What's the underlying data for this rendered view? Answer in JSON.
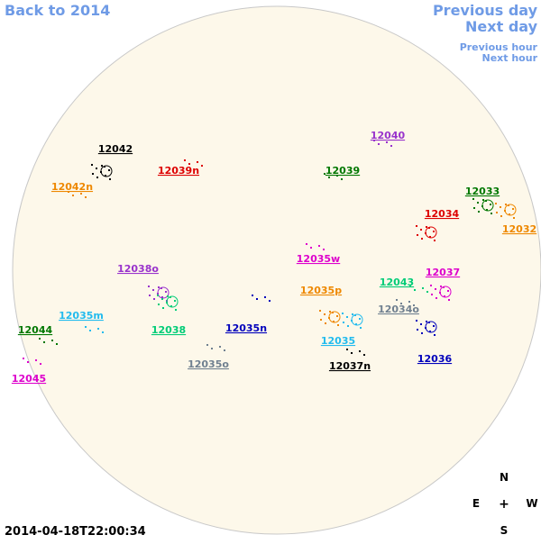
{
  "nav": {
    "back": "Back to 2014",
    "previous_day": "Previous day",
    "next_day": "Next day",
    "previous_hour": "Previous hour",
    "next_hour": "Next hour"
  },
  "timestamp": "2014-04-18T22:00:34",
  "compass": {
    "north": "N",
    "east": "E",
    "center": "+",
    "west": "W",
    "south": "S"
  },
  "regions": [
    {
      "label": "12042",
      "color": "#000000"
    },
    {
      "label": "12042n",
      "color": "#ee8800"
    },
    {
      "label": "12039n",
      "color": "#dd0000"
    },
    {
      "label": "12040",
      "color": "#9933cc"
    },
    {
      "label": "12039",
      "color": "#007700"
    },
    {
      "label": "12033",
      "color": "#007700"
    },
    {
      "label": "12034",
      "color": "#dd0000"
    },
    {
      "label": "12032",
      "color": "#ee8800"
    },
    {
      "label": "12035w",
      "color": "#dd00cc"
    },
    {
      "label": "12038o",
      "color": "#9933cc"
    },
    {
      "label": "12037",
      "color": "#dd00cc"
    },
    {
      "label": "12043",
      "color": "#00cc77"
    },
    {
      "label": "12035p",
      "color": "#ee8800"
    },
    {
      "label": "12034o",
      "color": "#708090"
    },
    {
      "label": "12035m",
      "color": "#22bbee"
    },
    {
      "label": "12035n",
      "color": "#0000bb"
    },
    {
      "label": "12038",
      "color": "#00cc77"
    },
    {
      "label": "12044",
      "color": "#007700"
    },
    {
      "label": "12035",
      "color": "#22bbee"
    },
    {
      "label": "12036",
      "color": "#0000bb"
    },
    {
      "label": "12035o",
      "color": "#708090"
    },
    {
      "label": "12037n",
      "color": "#000000"
    },
    {
      "label": "12045",
      "color": "#dd00cc"
    }
  ]
}
